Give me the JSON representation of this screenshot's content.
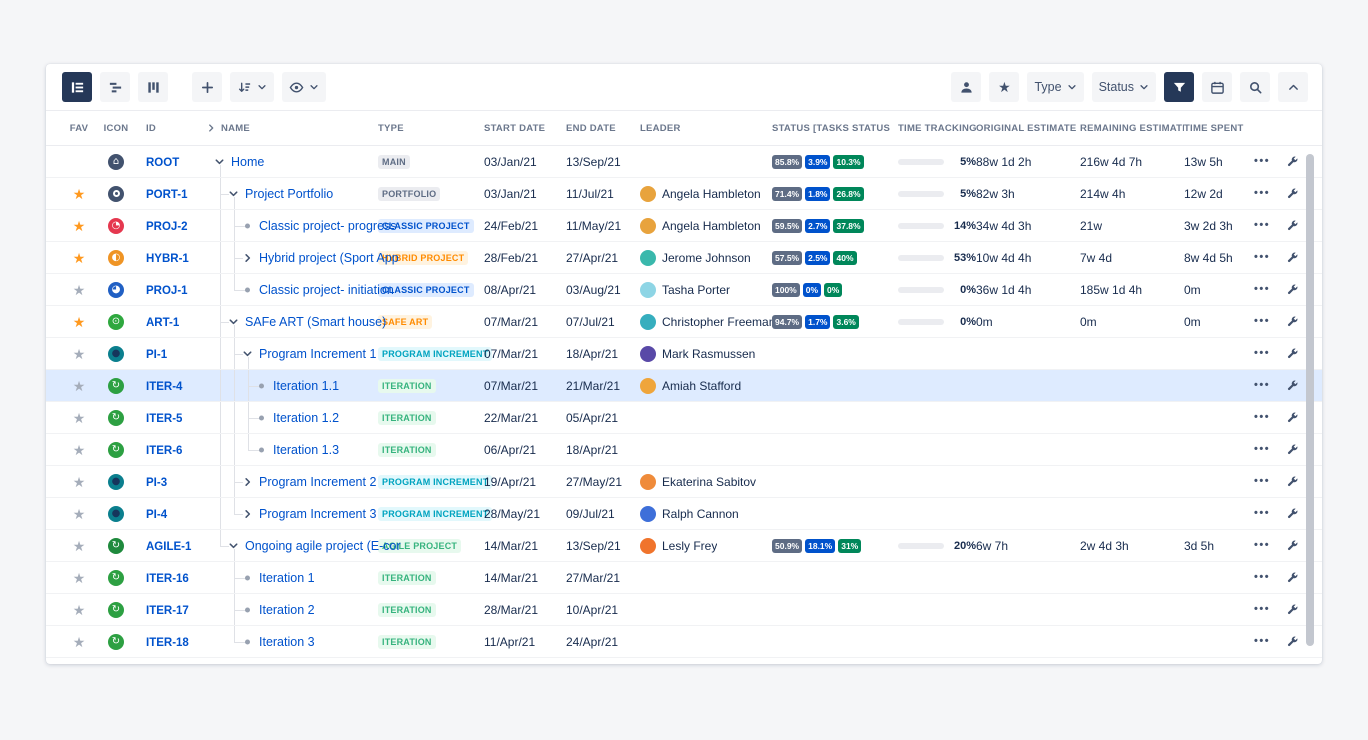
{
  "toolbar": {
    "type_label": "Type",
    "status_label": "Status"
  },
  "columns": [
    "FAV",
    "ICON",
    "ID",
    "NAME",
    "TYPE",
    "START DATE",
    "END DATE",
    "LEADER",
    "STATUS [TASKS STATUS",
    "TIME TRACKING",
    "ORIGINAL ESTIMATE",
    "REMAINING ESTIMATE",
    "TIME SPENT"
  ],
  "colors": {
    "accent": "#0052cc",
    "toolbar_selected": "#253858",
    "selected_row": "#deebff",
    "status_gray": "#5e6c84",
    "status_blue": "#0052cc",
    "status_green": "#00875a",
    "star_on": "#ff991f",
    "star_off": "#a5adba"
  },
  "type_styles": {
    "MAIN": {
      "bg": "#ebecf0",
      "fg": "#5e6c84"
    },
    "PORTFOLIO": {
      "bg": "#ebecf0",
      "fg": "#5e6c84"
    },
    "CLASSIC PROJECT": {
      "bg": "#deebff",
      "fg": "#0052cc"
    },
    "HYBRID PROJECT": {
      "bg": "#fff3e0",
      "fg": "#ff8b00"
    },
    "SAFE ART": {
      "bg": "#fff3e0",
      "fg": "#ff8b00"
    },
    "PROGRAM INCREMENT": {
      "bg": "#e2f8fc",
      "fg": "#00a3bf"
    },
    "ITERATION": {
      "bg": "#e7f9ee",
      "fg": "#36b37e"
    },
    "AGILE PROJECT": {
      "bg": "#e7f9ee",
      "fg": "#36b37e"
    }
  },
  "rows": [
    {
      "id": "ROOT",
      "fav": null,
      "icon": {
        "bg": "#42526e",
        "glyph": "⌂"
      },
      "depth": 0,
      "connector": "open",
      "last": false,
      "guides": [],
      "name": "Home",
      "type": "MAIN",
      "start": "03/Jan/21",
      "end": "13/Sep/21",
      "leader": null,
      "status": [
        "85.8%",
        "3.9%",
        "10.3%"
      ],
      "track": {
        "pct": "5%",
        "fill": 5
      },
      "orig": "88w 1d 2h",
      "rem": "216w 4d 7h",
      "spent": "13w 5h",
      "selected": false
    },
    {
      "id": "PORT-1",
      "fav": "on",
      "icon": {
        "bg": "#42526e",
        "ring": true
      },
      "depth": 1,
      "connector": "open",
      "last": false,
      "guides": [],
      "name": "Project Portfolio",
      "type": "PORTFOLIO",
      "start": "03/Jan/21",
      "end": "11/Jul/21",
      "leader": {
        "name": "Angela Hambleton",
        "color": "#e8a33d"
      },
      "status": [
        "71.4%",
        "1.8%",
        "26.8%"
      ],
      "track": {
        "pct": "5%",
        "fill": 5
      },
      "orig": "82w 3h",
      "rem": "214w 4h",
      "spent": "12w 2d",
      "selected": false
    },
    {
      "id": "PROJ-2",
      "fav": "on",
      "icon": {
        "bg": "#e5384f",
        "glyph": "◔"
      },
      "depth": 2,
      "connector": "leaf",
      "last": false,
      "guides": [
        0
      ],
      "name": "Classic project- progress",
      "type": "CLASSIC PROJECT",
      "start": "24/Feb/21",
      "end": "11/May/21",
      "leader": {
        "name": "Angela Hambleton",
        "color": "#e8a33d"
      },
      "status": [
        "59.5%",
        "2.7%",
        "37.8%"
      ],
      "track": {
        "pct": "14%",
        "fill": 14
      },
      "orig": "34w 4d 3h",
      "rem": "21w",
      "spent": "3w 2d 3h",
      "selected": false
    },
    {
      "id": "HYBR-1",
      "fav": "on",
      "icon": {
        "bg": "#ef9425",
        "glyph": "◐"
      },
      "depth": 2,
      "connector": "closed",
      "last": false,
      "guides": [
        0
      ],
      "name": "Hybrid project (Sport App",
      "type": "HYBRID PROJECT",
      "start": "28/Feb/21",
      "end": "27/Apr/21",
      "leader": {
        "name": "Jerome Johnson",
        "color": "#3ab8ac"
      },
      "status": [
        "57.5%",
        "2.5%",
        "40%"
      ],
      "track": {
        "pct": "53%",
        "fill": 53
      },
      "orig": "10w 4d 4h",
      "rem": "7w 4d",
      "spent": "8w 4d 5h",
      "selected": false
    },
    {
      "id": "PROJ-1",
      "fav": "off",
      "icon": {
        "bg": "#2160c4",
        "glyph": "◕"
      },
      "depth": 2,
      "connector": "leaf",
      "last": true,
      "guides": [
        0
      ],
      "name": "Classic project- initiation",
      "type": "CLASSIC PROJECT",
      "start": "08/Apr/21",
      "end": "03/Aug/21",
      "leader": {
        "name": "Tasha Porter",
        "color": "#8ed5e5"
      },
      "status": [
        "100%",
        "0%",
        "0%"
      ],
      "track": {
        "pct": "0%",
        "fill": 0
      },
      "orig": "36w 1d 4h",
      "rem": "185w 1d 4h",
      "spent": "0m",
      "selected": false
    },
    {
      "id": "ART-1",
      "fav": "on",
      "icon": {
        "bg": "#2fa83f",
        "glyph": "⊙"
      },
      "depth": 1,
      "connector": "open",
      "last": false,
      "guides": [],
      "name": "SAFe ART (Smart house)",
      "type": "SAFE ART",
      "start": "07/Mar/21",
      "end": "07/Jul/21",
      "leader": {
        "name": "Christopher Freeman",
        "color": "#36aebe"
      },
      "status": [
        "94.7%",
        "1.7%",
        "3.6%"
      ],
      "track": {
        "pct": "0%",
        "fill": 0
      },
      "orig": "0m",
      "rem": "0m",
      "spent": "0m",
      "selected": false
    },
    {
      "id": "PI-1",
      "fav": "off",
      "icon": {
        "bg": "#0b7f8e",
        "glyph": "●",
        "glyphColor": "#16355c"
      },
      "depth": 2,
      "connector": "open",
      "last": false,
      "guides": [
        0
      ],
      "name": "Program Increment 1",
      "type": "PROGRAM INCREMENT",
      "start": "07/Mar/21",
      "end": "18/Apr/21",
      "leader": {
        "name": "Mark Rasmussen",
        "color": "#5949a7"
      },
      "status": null,
      "track": null,
      "orig": "",
      "rem": "",
      "spent": "",
      "selected": false
    },
    {
      "id": "ITER-4",
      "fav": "off",
      "icon": {
        "bg": "#2da042",
        "glyph": "↻"
      },
      "depth": 3,
      "connector": "leaf",
      "last": false,
      "guides": [
        0,
        1
      ],
      "name": "Iteration 1.1",
      "type": "ITERATION",
      "start": "07/Mar/21",
      "end": "21/Mar/21",
      "leader": {
        "name": "Amiah Stafford",
        "color": "#efa53b"
      },
      "status": null,
      "track": null,
      "orig": "",
      "rem": "",
      "spent": "",
      "selected": true
    },
    {
      "id": "ITER-5",
      "fav": "off",
      "icon": {
        "bg": "#2da042",
        "glyph": "↻"
      },
      "depth": 3,
      "connector": "leaf",
      "last": false,
      "guides": [
        0,
        1
      ],
      "name": "Iteration 1.2",
      "type": "ITERATION",
      "start": "22/Mar/21",
      "end": "05/Apr/21",
      "leader": null,
      "status": null,
      "track": null,
      "orig": "",
      "rem": "",
      "spent": "",
      "selected": false
    },
    {
      "id": "ITER-6",
      "fav": "off",
      "icon": {
        "bg": "#2da042",
        "glyph": "↻"
      },
      "depth": 3,
      "connector": "leaf",
      "last": true,
      "guides": [
        0,
        1
      ],
      "name": "Iteration 1.3",
      "type": "ITERATION",
      "start": "06/Apr/21",
      "end": "18/Apr/21",
      "leader": null,
      "status": null,
      "track": null,
      "orig": "",
      "rem": "",
      "spent": "",
      "selected": false
    },
    {
      "id": "PI-3",
      "fav": "off",
      "icon": {
        "bg": "#0b7f8e",
        "glyph": "●",
        "glyphColor": "#16355c"
      },
      "depth": 2,
      "connector": "closed",
      "last": false,
      "guides": [
        0
      ],
      "name": "Program Increment 2",
      "type": "PROGRAM INCREMENT",
      "start": "19/Apr/21",
      "end": "27/May/21",
      "leader": {
        "name": "Ekaterina Sabitov",
        "color": "#ef8b3a"
      },
      "status": null,
      "track": null,
      "orig": "",
      "rem": "",
      "spent": "",
      "selected": false
    },
    {
      "id": "PI-4",
      "fav": "off",
      "icon": {
        "bg": "#0b7f8e",
        "glyph": "●",
        "glyphColor": "#16355c"
      },
      "depth": 2,
      "connector": "closed",
      "last": true,
      "guides": [
        0
      ],
      "name": "Program Increment 3",
      "type": "PROGRAM INCREMENT",
      "start": "28/May/21",
      "end": "09/Jul/21",
      "leader": {
        "name": "Ralph Cannon",
        "color": "#3e6fd9"
      },
      "status": null,
      "track": null,
      "orig": "",
      "rem": "",
      "spent": "",
      "selected": false
    },
    {
      "id": "AGILE-1",
      "fav": "off",
      "icon": {
        "bg": "#1f8a3d",
        "glyph": "↻"
      },
      "depth": 1,
      "connector": "open",
      "last": true,
      "guides": [],
      "name": "Ongoing agile project (E-cor",
      "type": "AGILE PROJECT",
      "start": "14/Mar/21",
      "end": "13/Sep/21",
      "leader": {
        "name": "Lesly Frey",
        "color": "#f0742c"
      },
      "status": [
        "50.9%",
        "18.1%",
        "31%"
      ],
      "track": {
        "pct": "20%",
        "fill": 20
      },
      "orig": "6w 7h",
      "rem": "2w 4d 3h",
      "spent": "3d 5h",
      "selected": false
    },
    {
      "id": "ITER-16",
      "fav": "off",
      "icon": {
        "bg": "#2da042",
        "glyph": "↻"
      },
      "depth": 2,
      "connector": "leaf",
      "last": false,
      "guides": [],
      "name": "Iteration 1",
      "type": "ITERATION",
      "start": "14/Mar/21",
      "end": "27/Mar/21",
      "leader": null,
      "status": null,
      "track": null,
      "orig": "",
      "rem": "",
      "spent": "",
      "selected": false
    },
    {
      "id": "ITER-17",
      "fav": "off",
      "icon": {
        "bg": "#2da042",
        "glyph": "↻"
      },
      "depth": 2,
      "connector": "leaf",
      "last": false,
      "guides": [],
      "name": "Iteration 2",
      "type": "ITERATION",
      "start": "28/Mar/21",
      "end": "10/Apr/21",
      "leader": null,
      "status": null,
      "track": null,
      "orig": "",
      "rem": "",
      "spent": "",
      "selected": false
    },
    {
      "id": "ITER-18",
      "fav": "off",
      "icon": {
        "bg": "#2da042",
        "glyph": "↻"
      },
      "depth": 2,
      "connector": "leaf",
      "last": true,
      "guides": [],
      "name": "Iteration 3",
      "type": "ITERATION",
      "start": "11/Apr/21",
      "end": "24/Apr/21",
      "leader": null,
      "status": null,
      "track": null,
      "orig": "",
      "rem": "",
      "spent": "",
      "selected": false
    }
  ]
}
